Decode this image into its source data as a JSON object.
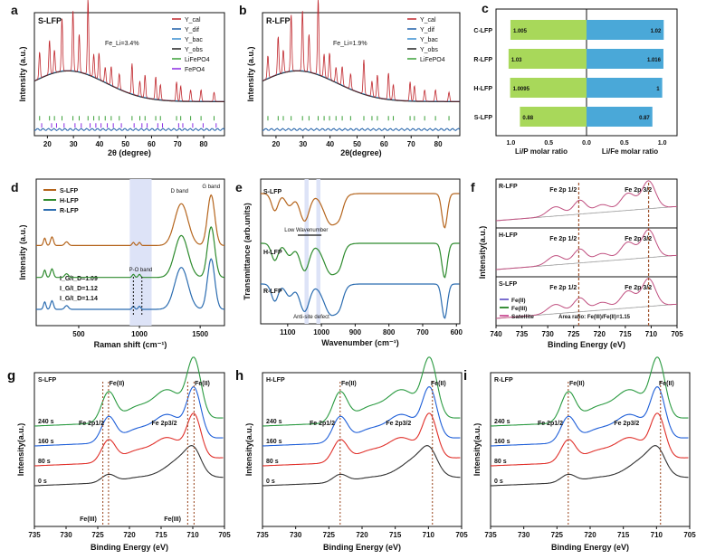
{
  "chart_data": [
    {
      "panel": "a",
      "type": "line",
      "inset_label": "S-LFP",
      "annotation": "Fe_Li=3.4%",
      "xlabel": "2θ (degree)",
      "ylabel": "Intensity (a.u.)",
      "xlim": [
        15,
        88
      ],
      "xticks": [
        20,
        30,
        40,
        50,
        60,
        70,
        80
      ],
      "legend": [
        "Y_cal",
        "Y_dif",
        "Y_bac",
        "Y_obs",
        "LiFePO4",
        "FePO4"
      ],
      "peaks": [
        [
          17,
          0.35
        ],
        [
          20.8,
          0.45
        ],
        [
          22.7,
          0.3
        ],
        [
          25.6,
          0.7
        ],
        [
          29.8,
          0.8
        ],
        [
          32.2,
          0.5
        ],
        [
          35.6,
          1.0
        ],
        [
          37.8,
          0.3
        ],
        [
          39.8,
          0.35
        ],
        [
          42.2,
          0.2
        ],
        [
          44.5,
          0.25
        ],
        [
          47.6,
          0.2
        ],
        [
          52.5,
          0.4
        ],
        [
          55.5,
          0.2
        ],
        [
          57.5,
          0.3
        ],
        [
          61.6,
          0.3
        ],
        [
          63.4,
          0.2
        ],
        [
          69.6,
          0.25
        ],
        [
          71.2,
          0.2
        ],
        [
          75,
          0.15
        ],
        [
          79,
          0.15
        ],
        [
          84,
          0.12
        ]
      ]
    },
    {
      "panel": "b",
      "type": "line",
      "inset_label": "R-LFP",
      "annotation": "Fe_Li=1.9%",
      "xlabel": "2θ(degree)",
      "ylabel": "Intensity (a.u.)",
      "xlim": [
        15,
        88
      ],
      "xticks": [
        20,
        30,
        40,
        50,
        60,
        70,
        80
      ],
      "legend": [
        "Y_cal",
        "Y_dif",
        "Y_bac",
        "Y_obs",
        "LiFePO4"
      ],
      "peaks": [
        [
          17,
          0.3
        ],
        [
          20.8,
          0.5
        ],
        [
          22.7,
          0.3
        ],
        [
          25.6,
          0.75
        ],
        [
          29.8,
          0.8
        ],
        [
          32.2,
          0.5
        ],
        [
          35.6,
          1.0
        ],
        [
          37.8,
          0.3
        ],
        [
          39.8,
          0.35
        ],
        [
          42.2,
          0.2
        ],
        [
          44.5,
          0.25
        ],
        [
          47.6,
          0.2
        ],
        [
          52.5,
          0.45
        ],
        [
          55.5,
          0.2
        ],
        [
          57.5,
          0.3
        ],
        [
          61.6,
          0.35
        ],
        [
          63.4,
          0.2
        ],
        [
          69.6,
          0.25
        ],
        [
          71.2,
          0.2
        ],
        [
          75,
          0.15
        ],
        [
          79,
          0.15
        ],
        [
          84,
          0.12
        ]
      ]
    },
    {
      "panel": "c",
      "type": "bar",
      "categories": [
        "C-LFP",
        "R-LFP",
        "H-LFP",
        "S-LFP"
      ],
      "series": [
        {
          "name": "Li/P molar ratio",
          "values": [
            1.005,
            1.03,
            1.0095,
            0.88
          ]
        },
        {
          "name": "Li/Fe molar ratio",
          "values": [
            1.02,
            1.016,
            1,
            0.87
          ]
        }
      ],
      "value_labels_left": [
        "1.005",
        "1.03",
        "1.0095",
        "0.88"
      ],
      "value_labels_right": [
        "1.02",
        "1.016",
        "1",
        "0.87"
      ],
      "xticks_left": [
        "1.0",
        "0.5",
        "0.0"
      ],
      "xticks_right": [
        "0.5",
        "1.0"
      ],
      "xlabel_left": "Li/P molar ratio",
      "xlabel_right": "Li/Fe molar ratio"
    },
    {
      "panel": "d",
      "type": "line",
      "xlabel": "Raman shift (cm⁻¹)",
      "ylabel": "Intensity (a.u.)",
      "xlim": [
        150,
        1700
      ],
      "xticks": [
        500,
        1000,
        1500
      ],
      "series": [
        {
          "name": "S-LFP",
          "color": "#b5651d",
          "offset": 0.66,
          "ratio": "I_G/I_D=1.09"
        },
        {
          "name": "H-LFP",
          "color": "#2e8b2e",
          "offset": 0.33,
          "ratio": "I_G/I_D=1.12"
        },
        {
          "name": "R-LFP",
          "color": "#2b6cb0",
          "offset": 0.0,
          "ratio": "I_G/I_D=1.14"
        }
      ],
      "annotations": [
        "D band",
        "G band",
        "P-O band"
      ]
    },
    {
      "panel": "e",
      "type": "line",
      "xlabel": "Wavenumber (cm⁻¹)",
      "ylabel": "Transmittance (arb.units)",
      "xlim": [
        1180,
        590
      ],
      "xticks": [
        1100,
        1000,
        900,
        800,
        700,
        600
      ],
      "series": [
        {
          "name": "S-LFP",
          "color": "#b5651d"
        },
        {
          "name": "H-LFP",
          "color": "#2e8b2e"
        },
        {
          "name": "R-LFP",
          "color": "#2b6cb0"
        }
      ],
      "annotations": [
        "Low Wavenumber",
        "Anti-site defect"
      ]
    },
    {
      "panel": "f",
      "type": "line",
      "xlabel": "Binding Energy (eV)",
      "ylabel": "Intensity(a.u.)",
      "xlim": [
        740,
        705
      ],
      "xticks": [
        740,
        735,
        730,
        725,
        720,
        715,
        710,
        705
      ],
      "subpanels": [
        "R-LFP",
        "H-LFP",
        "S-LFP"
      ],
      "peak_labels": [
        "Fe 2p 1/2",
        "Fe 2p 3/2"
      ],
      "legend": [
        "Fe(II)",
        "Fe(III)",
        "Satellite"
      ],
      "annotation": "Area ratio: Fe(III)/Fe(II)=1.15"
    },
    {
      "panel": "g",
      "type": "line",
      "inset_label": "S-LFP",
      "xlabel": "Binding Energy (eV)",
      "ylabel": "Intensity(a.u.)",
      "xlim": [
        735,
        705
      ],
      "xticks": [
        735,
        730,
        725,
        720,
        715,
        710,
        705
      ],
      "series": [
        "0 s",
        "80 s",
        "160 s",
        "240 s"
      ],
      "labels": [
        "Fe 2p1/2",
        "Fe 2p3/2",
        "Fe(II)",
        "Fe(II)",
        "Fe(III)",
        "Fe(III)"
      ]
    },
    {
      "panel": "h",
      "type": "line",
      "inset_label": "H-LFP",
      "xlabel": "Binding Energy (eV)",
      "ylabel": "Intensity(a.u.)",
      "xlim": [
        735,
        705
      ],
      "xticks": [
        735,
        730,
        725,
        720,
        715,
        710,
        705
      ],
      "series": [
        "0 s",
        "80 s",
        "160 s",
        "240 s"
      ],
      "labels": [
        "Fe 2p1/2",
        "Fe 2p3/2",
        "Fe(II)",
        "Fe(II)"
      ]
    },
    {
      "panel": "i",
      "type": "line",
      "inset_label": "R-LFP",
      "xlabel": "Binding Energy (eV)",
      "ylabel": "Intensity(a.u.)",
      "xlim": [
        735,
        705
      ],
      "xticks": [
        735,
        730,
        725,
        720,
        715,
        710,
        705
      ],
      "series": [
        "0 s",
        "80 s",
        "160 s",
        "240 s"
      ],
      "labels": [
        "Fe 2p1/2",
        "Fe 2p3/2",
        "Fe(II)",
        "Fe(II)"
      ]
    }
  ],
  "colors": {
    "cal": "#c0272d",
    "dif": "#1f5fa8",
    "bac": "#3a8fd0",
    "obs": "#222222",
    "s": "#b5651d",
    "h": "#2e8b2e",
    "r": "#2b6cb0",
    "t0": "#333333",
    "t80": "#e0302a",
    "t160": "#1f5fd8",
    "t240": "#2a9a40",
    "bar_left": "#a8d85a",
    "bar_right": "#4aa8d8"
  }
}
